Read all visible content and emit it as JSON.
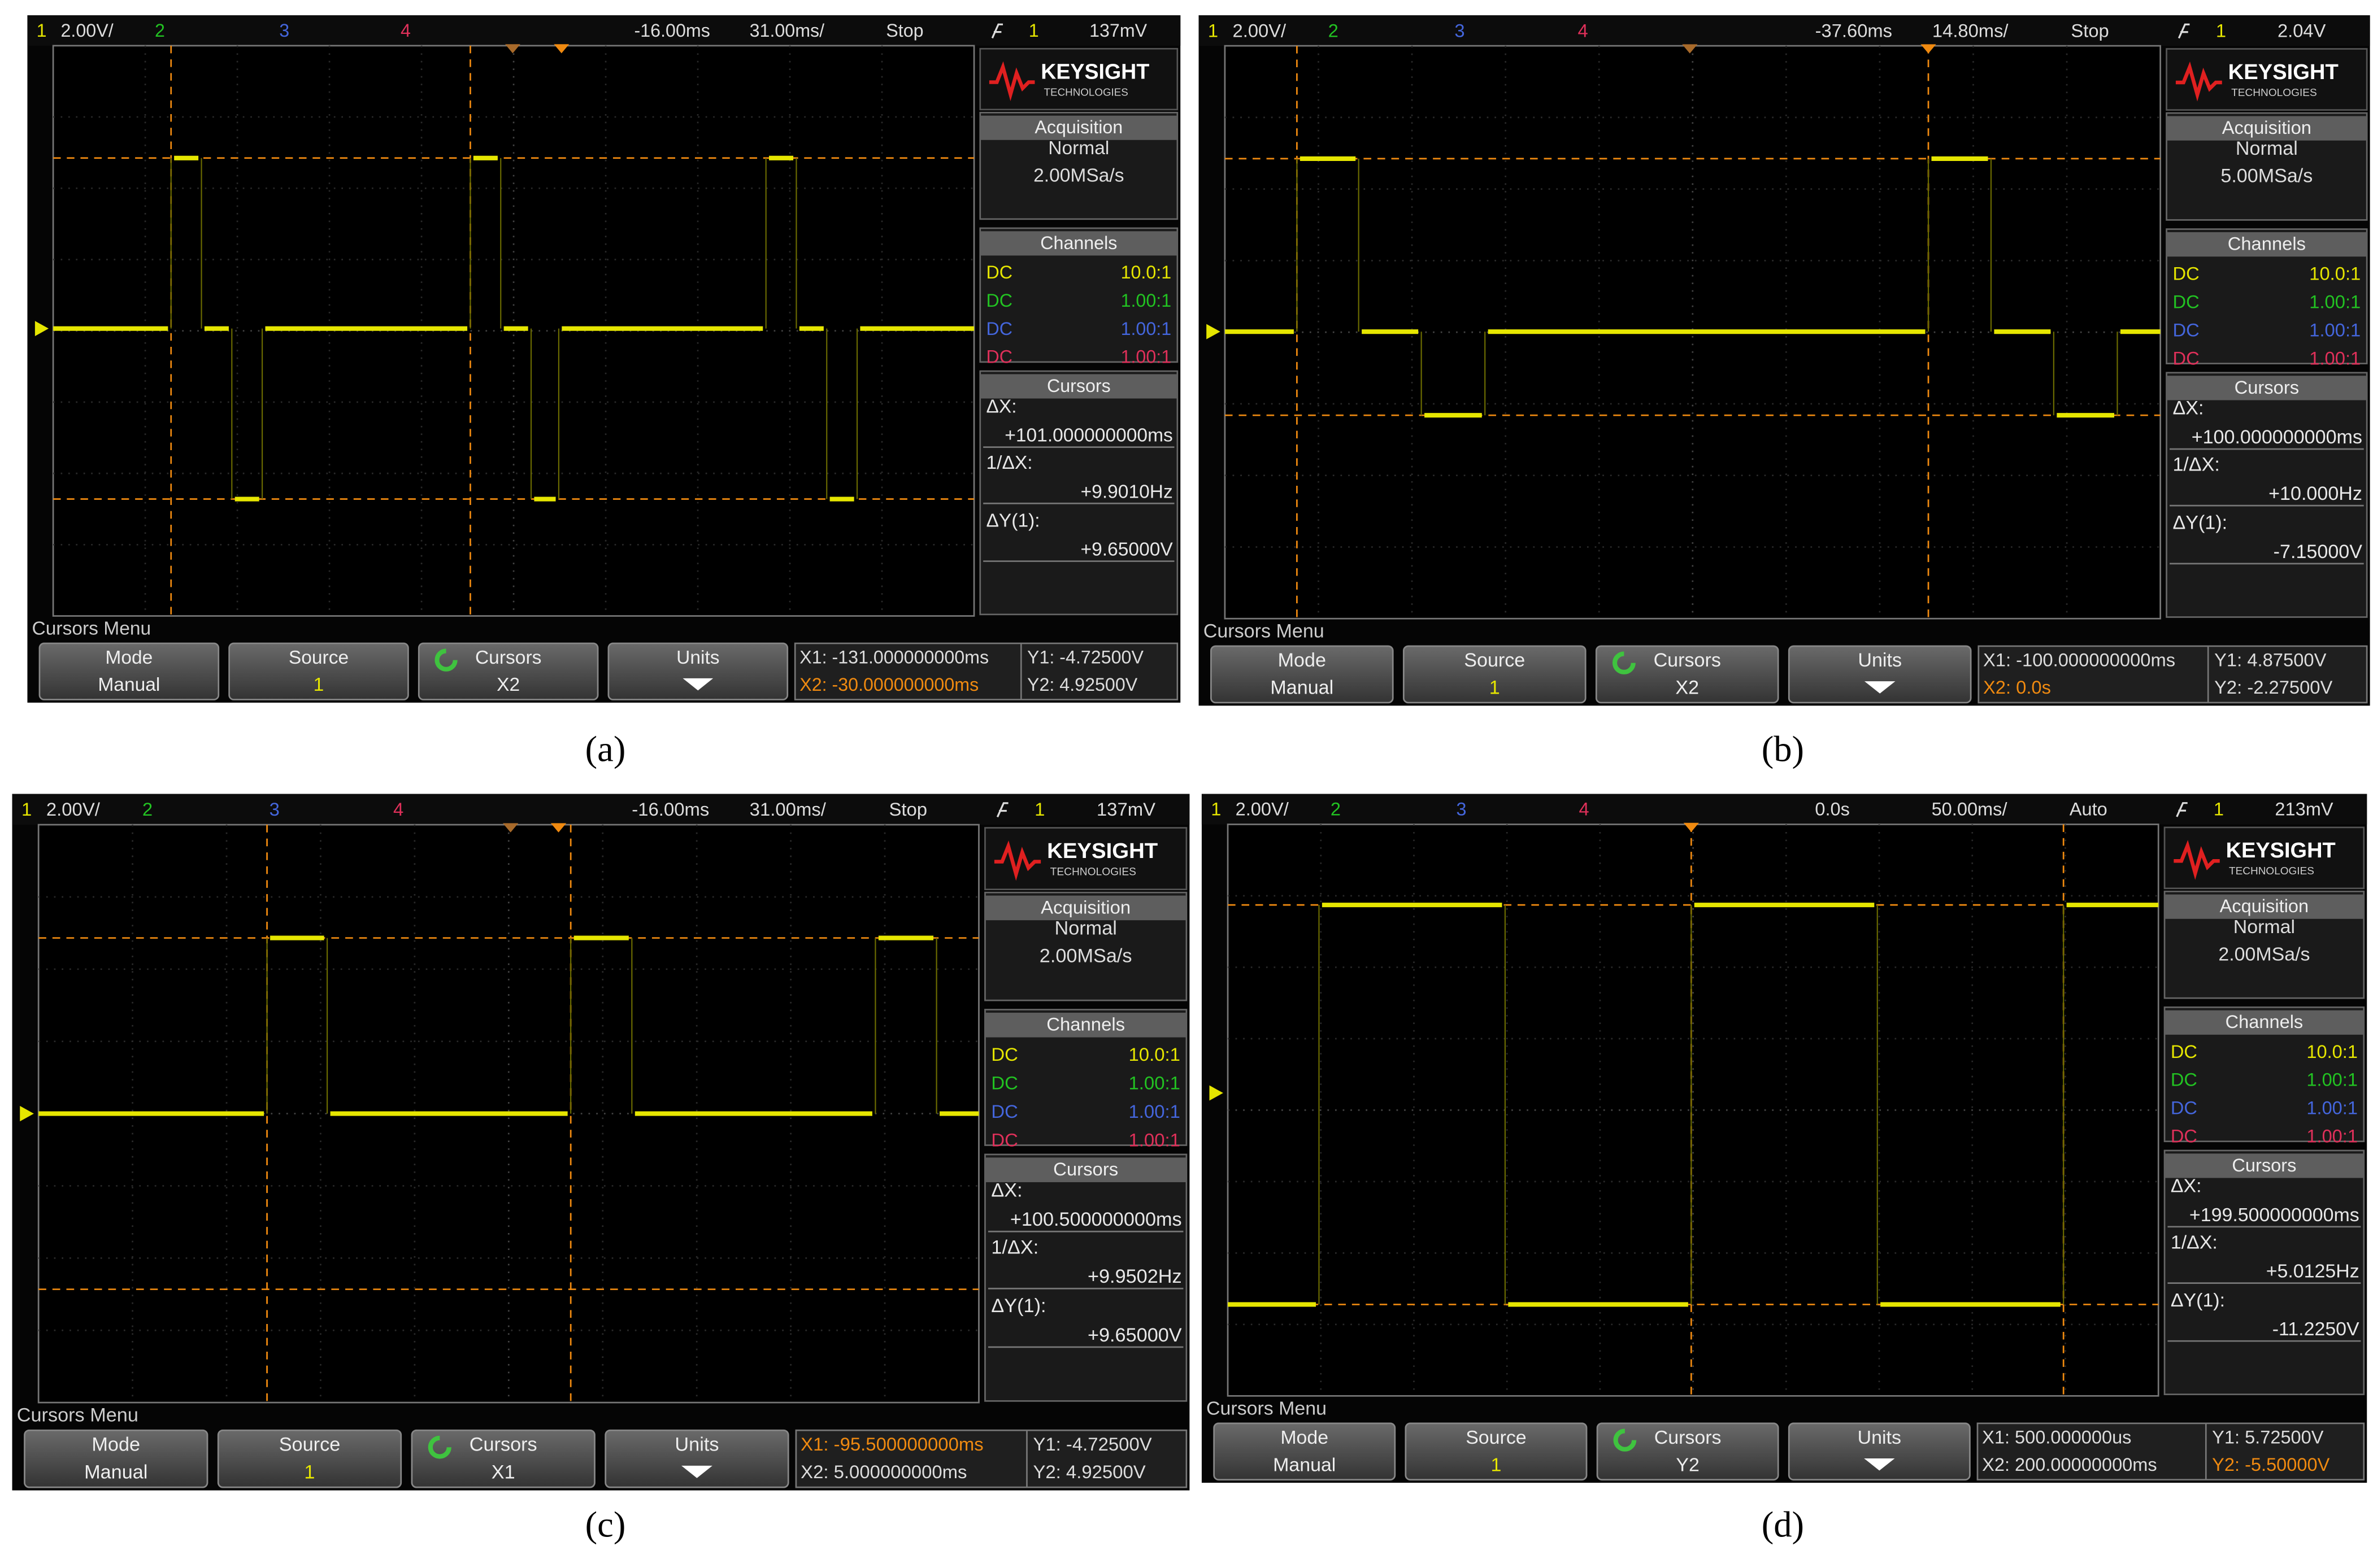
{
  "panels": [
    {
      "caption": "(a)",
      "top": {
        "channel1": "1",
        "volts_per_div": "2.00V/",
        "channel2": "2",
        "channel3": "3",
        "channel4": "4",
        "delay": "-16.00ms",
        "time_per_div": "31.00ms/",
        "run_state": "Stop",
        "trigger_channel": "1",
        "trigger_level": "137mV"
      },
      "brand": {
        "name": "KEYSIGHT",
        "sub": "TECHNOLOGIES"
      },
      "acquisition": {
        "title": "Acquisition",
        "mode": "Normal",
        "rate": "2.00MSa/s"
      },
      "channels": {
        "title": "Channels",
        "rows": [
          [
            "DC",
            "10.0:1"
          ],
          [
            "DC",
            "1.00:1"
          ],
          [
            "DC",
            "1.00:1"
          ],
          [
            "DC",
            "1.00:1"
          ]
        ]
      },
      "cursors": {
        "title": "Cursors",
        "dx_label": "ΔX:",
        "dx": "+101.000000000ms",
        "inv_label": "1/ΔX:",
        "inv": "+9.9010Hz",
        "dy_label": "ΔY(1):",
        "dy": "+9.65000V"
      },
      "menu": {
        "title": "Cursors Menu",
        "buttons": [
          {
            "label": "Mode",
            "value": "Manual"
          },
          {
            "label": "Source",
            "value": "1"
          },
          {
            "label": "Cursors",
            "value": "X2"
          },
          {
            "label": "Units"
          }
        ],
        "readout": {
          "x1": "X1: -131.000000000ms",
          "x2": "X2: -30.000000000ms",
          "y1": "Y1: -4.72500V",
          "y2": "Y2: 4.92500V"
        }
      }
    },
    {
      "caption": "(b)",
      "top": {
        "channel1": "1",
        "volts_per_div": "2.00V/",
        "channel2": "2",
        "channel3": "3",
        "channel4": "4",
        "delay": "-37.60ms",
        "time_per_div": "14.80ms/",
        "run_state": "Stop",
        "trigger_channel": "1",
        "trigger_level": "2.04V"
      },
      "brand": {
        "name": "KEYSIGHT",
        "sub": "TECHNOLOGIES"
      },
      "acquisition": {
        "title": "Acquisition",
        "mode": "Normal",
        "rate": "5.00MSa/s"
      },
      "channels": {
        "title": "Channels",
        "rows": [
          [
            "DC",
            "10.0:1"
          ],
          [
            "DC",
            "1.00:1"
          ],
          [
            "DC",
            "1.00:1"
          ],
          [
            "DC",
            "1.00:1"
          ]
        ]
      },
      "cursors": {
        "title": "Cursors",
        "dx_label": "ΔX:",
        "dx": "+100.000000000ms",
        "inv_label": "1/ΔX:",
        "inv": "+10.000Hz",
        "dy_label": "ΔY(1):",
        "dy": "-7.15000V"
      },
      "menu": {
        "title": "Cursors Menu",
        "buttons": [
          {
            "label": "Mode",
            "value": "Manual"
          },
          {
            "label": "Source",
            "value": "1"
          },
          {
            "label": "Cursors",
            "value": "X2"
          },
          {
            "label": "Units"
          }
        ],
        "readout": {
          "x1": "X1: -100.000000000ms",
          "x2": "X2: 0.0s",
          "y1": "Y1: 4.87500V",
          "y2": "Y2: -2.27500V"
        }
      }
    },
    {
      "caption": "(c)",
      "top": {
        "channel1": "1",
        "volts_per_div": "2.00V/",
        "channel2": "2",
        "channel3": "3",
        "channel4": "4",
        "delay": "-16.00ms",
        "time_per_div": "31.00ms/",
        "run_state": "Stop",
        "trigger_channel": "1",
        "trigger_level": "137mV"
      },
      "brand": {
        "name": "KEYSIGHT",
        "sub": "TECHNOLOGIES"
      },
      "acquisition": {
        "title": "Acquisition",
        "mode": "Normal",
        "rate": "2.00MSa/s"
      },
      "channels": {
        "title": "Channels",
        "rows": [
          [
            "DC",
            "10.0:1"
          ],
          [
            "DC",
            "1.00:1"
          ],
          [
            "DC",
            "1.00:1"
          ],
          [
            "DC",
            "1.00:1"
          ]
        ]
      },
      "cursors": {
        "title": "Cursors",
        "dx_label": "ΔX:",
        "dx": "+100.500000000ms",
        "inv_label": "1/ΔX:",
        "inv": "+9.9502Hz",
        "dy_label": "ΔY(1):",
        "dy": "+9.65000V"
      },
      "menu": {
        "title": "Cursors Menu",
        "buttons": [
          {
            "label": "Mode",
            "value": "Manual"
          },
          {
            "label": "Source",
            "value": "1"
          },
          {
            "label": "Cursors",
            "value": "X1"
          },
          {
            "label": "Units"
          }
        ],
        "readout": {
          "x1": "X1: -95.500000000ms",
          "x2": "X2: 5.000000000ms",
          "y1": "Y1: -4.72500V",
          "y2": "Y2: 4.92500V"
        }
      }
    },
    {
      "caption": "(d)",
      "top": {
        "channel1": "1",
        "volts_per_div": "2.00V/",
        "channel2": "2",
        "channel3": "3",
        "channel4": "4",
        "delay": "0.0s",
        "time_per_div": "50.00ms/",
        "run_state": "Auto",
        "trigger_channel": "1",
        "trigger_level": "213mV"
      },
      "brand": {
        "name": "KEYSIGHT",
        "sub": "TECHNOLOGIES"
      },
      "acquisition": {
        "title": "Acquisition",
        "mode": "Normal",
        "rate": "2.00MSa/s"
      },
      "channels": {
        "title": "Channels",
        "rows": [
          [
            "DC",
            "10.0:1"
          ],
          [
            "DC",
            "1.00:1"
          ],
          [
            "DC",
            "1.00:1"
          ],
          [
            "DC",
            "1.00:1"
          ]
        ]
      },
      "cursors": {
        "title": "Cursors",
        "dx_label": "ΔX:",
        "dx": "+199.500000000ms",
        "inv_label": "1/ΔX:",
        "inv": "+5.0125Hz",
        "dy_label": "ΔY(1):",
        "dy": "-11.2250V"
      },
      "menu": {
        "title": "Cursors Menu",
        "buttons": [
          {
            "label": "Mode",
            "value": "Manual"
          },
          {
            "label": "Source",
            "value": "1"
          },
          {
            "label": "Cursors",
            "value": "Y2"
          },
          {
            "label": "Units"
          }
        ],
        "readout": {
          "x1": "X1: 500.000000us",
          "x2": "X2: 200.00000000ms",
          "y1": "Y1: 5.72500V",
          "y2": "Y2: -5.50000V"
        }
      }
    }
  ]
}
